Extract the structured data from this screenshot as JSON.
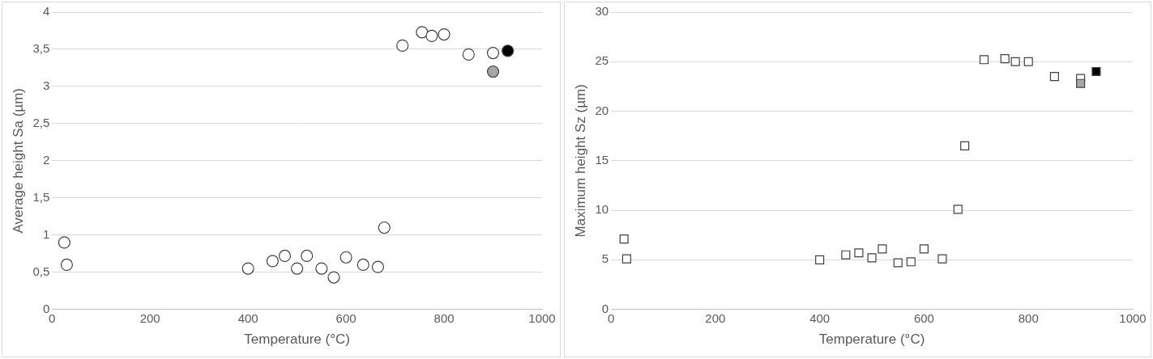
{
  "chart_data": [
    {
      "type": "scatter",
      "x_label": "Temperature (°C)",
      "y_label": "Average height Sa (µm)",
      "x": [
        25,
        30,
        400,
        450,
        475,
        500,
        520,
        550,
        575,
        600,
        635,
        665,
        678,
        715,
        755,
        775,
        800,
        850,
        900,
        900,
        930
      ],
      "values": [
        0.9,
        0.6,
        0.55,
        0.65,
        0.72,
        0.55,
        0.72,
        0.55,
        0.43,
        0.7,
        0.6,
        0.57,
        1.1,
        3.55,
        3.73,
        3.68,
        3.7,
        3.43,
        3.45,
        3.2,
        3.48
      ],
      "colors": [
        "#ffffff",
        "#ffffff",
        "#ffffff",
        "#ffffff",
        "#ffffff",
        "#ffffff",
        "#ffffff",
        "#ffffff",
        "#ffffff",
        "#ffffff",
        "#ffffff",
        "#ffffff",
        "#ffffff",
        "#ffffff",
        "#ffffff",
        "#ffffff",
        "#ffffff",
        "#ffffff",
        "#ffffff",
        "#a6a6a6",
        "#000000"
      ],
      "marker": "circle",
      "xlim": [
        0,
        1000
      ],
      "xticks": [
        0,
        200,
        400,
        600,
        800,
        1000
      ],
      "ylim": [
        0,
        4
      ],
      "yticks": [
        0,
        {
          "value": 0.5,
          "label": "0,5"
        },
        1,
        {
          "value": 1.5,
          "label": "1,5"
        },
        2,
        {
          "value": 2.5,
          "label": "2,5"
        },
        3,
        {
          "value": 3.5,
          "label": "3,5"
        },
        4
      ],
      "grid": true
    },
    {
      "type": "scatter",
      "x_label": "Temperature (°C)",
      "y_label": "Maximum height Sz (µm)",
      "x": [
        25,
        30,
        400,
        450,
        475,
        500,
        520,
        550,
        575,
        600,
        635,
        665,
        678,
        715,
        755,
        775,
        800,
        850,
        900,
        900,
        930
      ],
      "values": [
        7.1,
        5.1,
        5.0,
        5.5,
        5.7,
        5.2,
        6.1,
        4.7,
        4.8,
        6.1,
        5.1,
        10.1,
        16.5,
        25.2,
        25.3,
        25.0,
        25.0,
        23.5,
        23.3,
        22.8,
        24.0
      ],
      "colors": [
        "#ffffff",
        "#ffffff",
        "#ffffff",
        "#ffffff",
        "#ffffff",
        "#ffffff",
        "#ffffff",
        "#ffffff",
        "#ffffff",
        "#ffffff",
        "#ffffff",
        "#ffffff",
        "#ffffff",
        "#ffffff",
        "#ffffff",
        "#ffffff",
        "#ffffff",
        "#ffffff",
        "#ffffff",
        "#a6a6a6",
        "#000000"
      ],
      "marker": "square",
      "xlim": [
        0,
        1000
      ],
      "xticks": [
        0,
        200,
        400,
        600,
        800,
        1000
      ],
      "ylim": [
        0,
        30
      ],
      "yticks": [
        0,
        5,
        10,
        15,
        20,
        25,
        30
      ],
      "grid": true
    }
  ]
}
